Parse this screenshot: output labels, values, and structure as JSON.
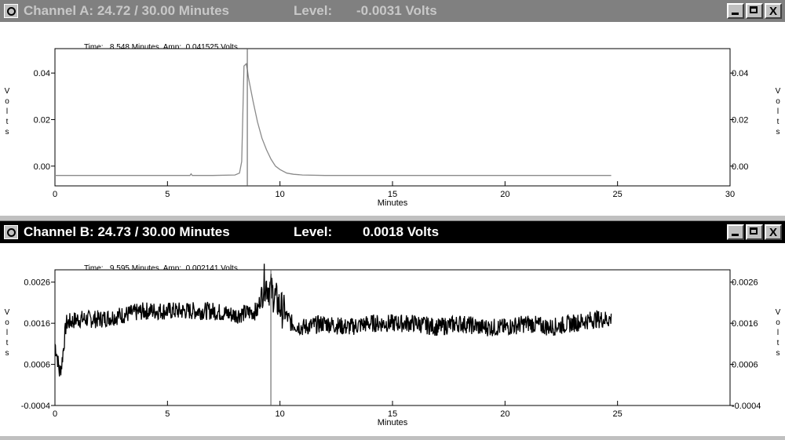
{
  "channel_a": {
    "title": "Channel A: 24.72 / 30.00 Minutes",
    "level_label": "Level:",
    "level_value": "-0.0031 Volts",
    "readout_time_label": "Time:",
    "readout_time_value": "8.548 Minutes",
    "readout_amp_label": "Amp:",
    "readout_amp_value": "0.041525 Volts",
    "y_axis_label": "Volts",
    "x_axis_label": "Minutes",
    "x_ticks": [
      "0",
      "5",
      "10",
      "15",
      "20",
      "25",
      "30"
    ],
    "y_ticks": [
      "0.04",
      "0.02",
      "0.00"
    ],
    "cursor_time": 8.548
  },
  "channel_b": {
    "title": "Channel B: 24.73 / 30.00 Minutes",
    "level_label": "Level:",
    "level_value": "0.0018 Volts",
    "readout_time_label": "Time:",
    "readout_time_value": "9.595 Minutes",
    "readout_amp_label": "Amp:",
    "readout_amp_value": "0.002141 Volts",
    "y_axis_label": "Volts",
    "x_axis_label": "Minutes",
    "x_ticks": [
      "0",
      "5",
      "10",
      "15",
      "20",
      "25"
    ],
    "y_ticks": [
      "0.0026",
      "0.0016",
      "0.0006",
      "-0.0004"
    ],
    "cursor_time": 9.595
  },
  "window_buttons": {
    "close_glyph": "X"
  },
  "chart_data": [
    {
      "type": "line",
      "series": [
        {
          "x": [
            0,
            1,
            2,
            3,
            4,
            5,
            6,
            6.05,
            6.1,
            7,
            8,
            8.2,
            8.3,
            8.4,
            8.5,
            8.55,
            8.6,
            8.7,
            8.8,
            9.0,
            9.2,
            9.4,
            9.6,
            9.8,
            10.0,
            10.3,
            10.6,
            11,
            12,
            14,
            16,
            18,
            20,
            22,
            24,
            24.72
          ],
          "y": [
            -0.004,
            -0.004,
            -0.004,
            -0.004,
            -0.004,
            -0.004,
            -0.004,
            -0.0033,
            -0.004,
            -0.004,
            -0.0038,
            -0.003,
            0.002,
            0.043,
            0.044,
            0.0415,
            0.038,
            0.033,
            0.028,
            0.019,
            0.012,
            0.007,
            0.003,
            0.0,
            -0.0015,
            -0.003,
            -0.0035,
            -0.0038,
            -0.004,
            -0.004,
            -0.004,
            -0.004,
            -0.004,
            -0.004,
            -0.004,
            -0.004
          ]
        }
      ],
      "xlim": [
        0,
        30
      ],
      "ylim": [
        -0.0085,
        0.0505
      ],
      "xlabel": "Minutes",
      "ylabel": "Volts",
      "grid": false
    },
    {
      "type": "line",
      "series": [
        {
          "x": [
            0,
            0.1,
            0.2,
            0.3,
            0.4,
            0.5,
            1,
            2,
            3,
            4,
            5,
            6,
            7,
            8,
            9,
            9.3,
            9.6,
            10,
            10.5,
            11,
            12,
            13,
            14,
            15,
            16,
            17,
            18,
            19,
            20,
            21,
            22,
            23,
            24,
            24.73
          ],
          "y": [
            0.0011,
            0.0008,
            0.0004,
            0.0006,
            0.0011,
            0.0016,
            0.0017,
            0.0017,
            0.0018,
            0.0019,
            0.0019,
            0.0019,
            0.0019,
            0.0018,
            0.0019,
            0.0026,
            0.0024,
            0.002,
            0.0016,
            0.0015,
            0.0016,
            0.0015,
            0.0016,
            0.0016,
            0.0016,
            0.0015,
            0.0016,
            0.0015,
            0.0015,
            0.0016,
            0.0015,
            0.0016,
            0.0017,
            0.0017
          ]
        }
      ],
      "xlim": [
        0,
        30
      ],
      "ylim": [
        -0.0004,
        0.0029
      ],
      "xlabel": "Minutes",
      "ylabel": "Volts",
      "grid": false
    }
  ]
}
